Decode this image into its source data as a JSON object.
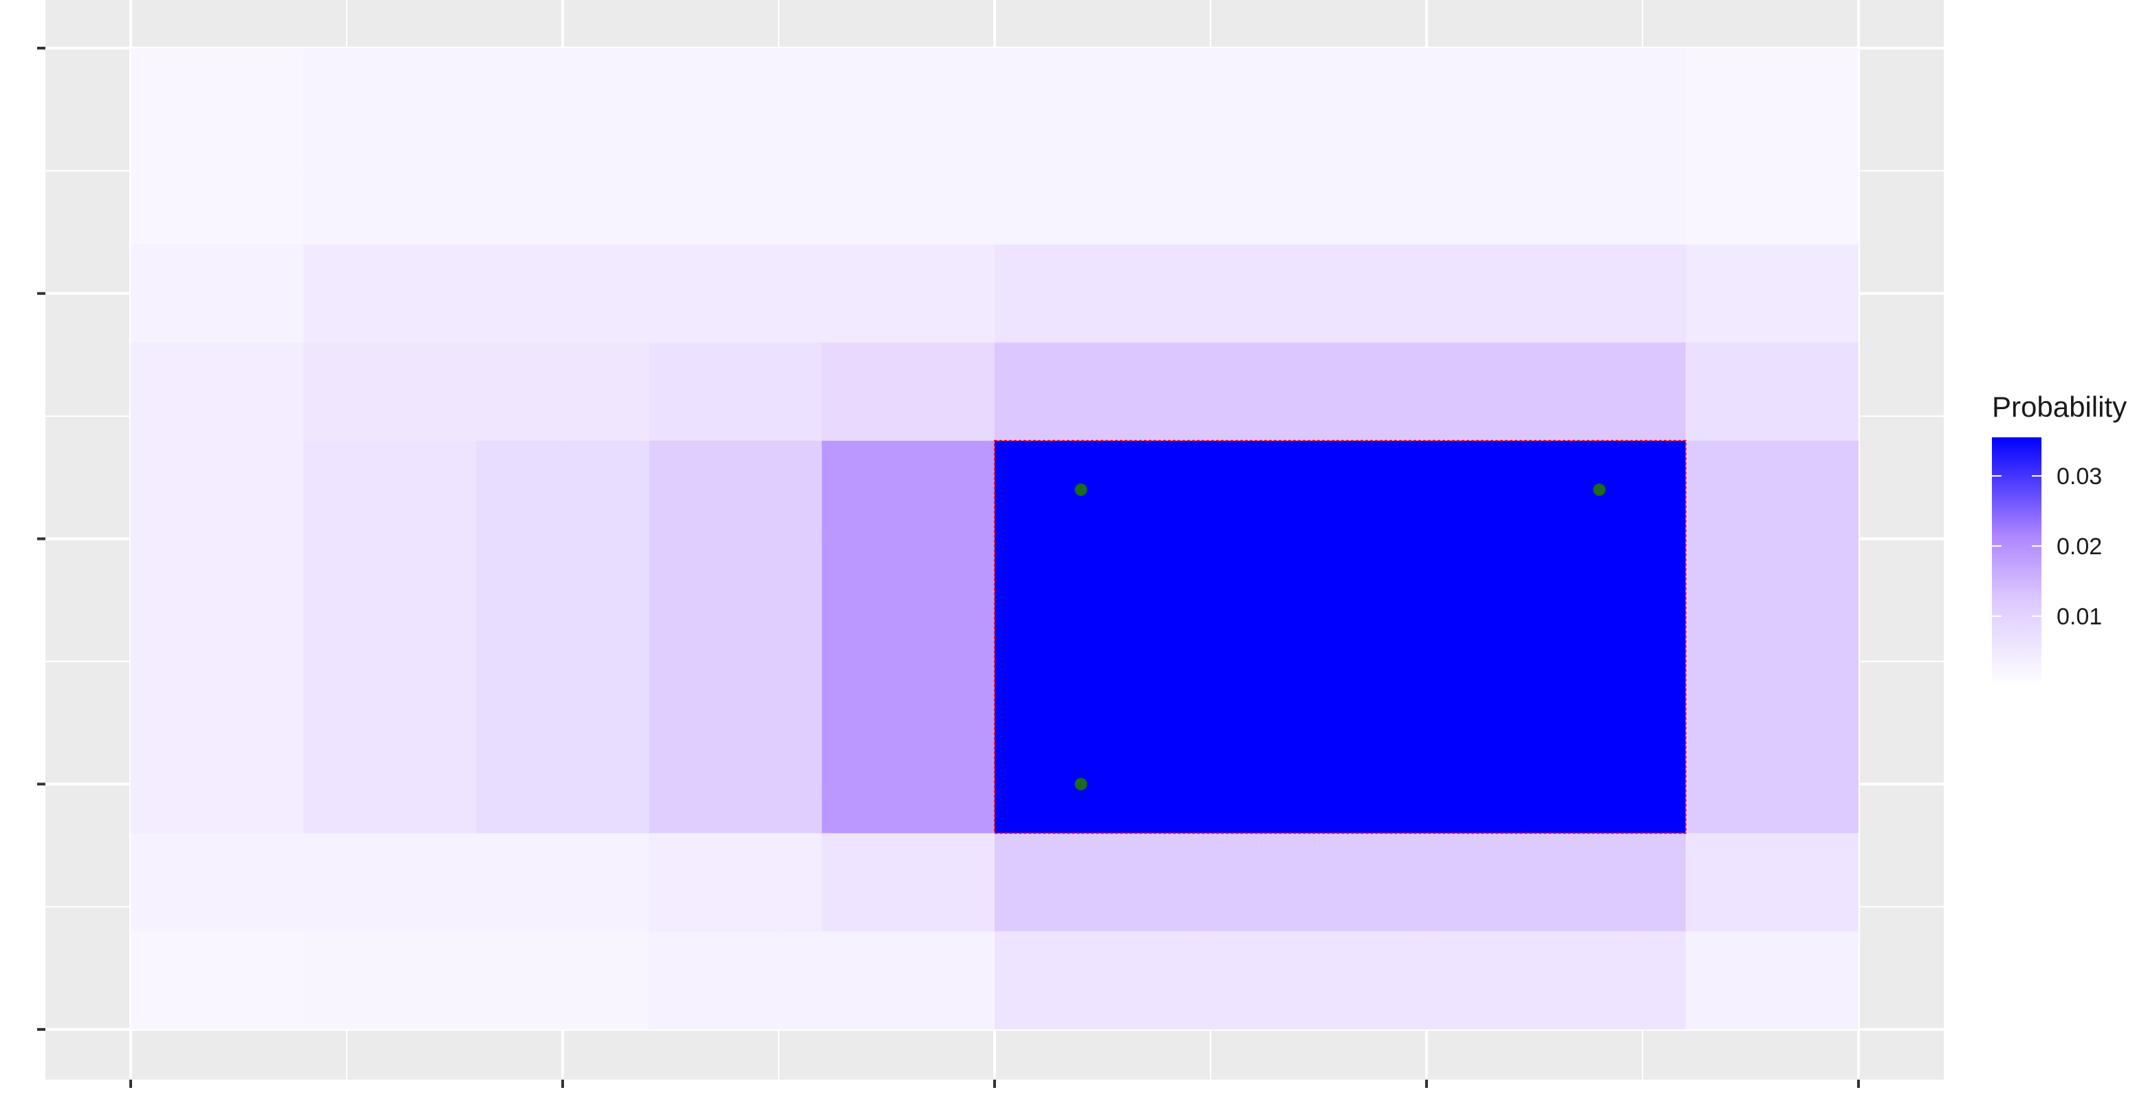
{
  "chart_data": {
    "type": "heatmap",
    "title": "",
    "xlabel": "",
    "ylabel": "",
    "x_ticks": [
      "",
      "",
      "",
      "",
      ""
    ],
    "y_ticks": [
      "",
      "",
      "",
      "",
      ""
    ],
    "grid": true,
    "legend": {
      "title": "Probability",
      "position": "right",
      "low_color": "#ffffff",
      "high_color": "#0000ff",
      "scale_max": 0.0355,
      "breaks": [
        0.01,
        0.02,
        0.03
      ],
      "break_labels": [
        "0.01",
        "0.02",
        "0.03"
      ]
    },
    "x_edges": [
      0,
      1,
      2,
      3,
      4,
      5,
      6,
      7,
      8,
      9,
      10
    ],
    "y_edges": [
      0,
      1,
      2,
      3,
      4,
      5,
      6,
      7,
      8,
      9,
      10
    ],
    "cells": [
      {
        "x": [
          0,
          1
        ],
        "y": [
          0,
          1
        ],
        "value": 0.002
      },
      {
        "x": [
          1,
          3
        ],
        "y": [
          0,
          1
        ],
        "value": 0.0022
      },
      {
        "x": [
          3,
          5
        ],
        "y": [
          0,
          1
        ],
        "value": 0.003
      },
      {
        "x": [
          5,
          9
        ],
        "y": [
          0,
          1
        ],
        "value": 0.006
      },
      {
        "x": [
          9,
          10
        ],
        "y": [
          0,
          1
        ],
        "value": 0.0032
      },
      {
        "x": [
          0,
          3
        ],
        "y": [
          1,
          2
        ],
        "value": 0.003
      },
      {
        "x": [
          3,
          4
        ],
        "y": [
          1,
          2
        ],
        "value": 0.004
      },
      {
        "x": [
          4,
          5
        ],
        "y": [
          1,
          2
        ],
        "value": 0.006
      },
      {
        "x": [
          5,
          9
        ],
        "y": [
          1,
          2
        ],
        "value": 0.012
      },
      {
        "x": [
          9,
          10
        ],
        "y": [
          1,
          2
        ],
        "value": 0.006
      },
      {
        "x": [
          0,
          1
        ],
        "y": [
          2,
          6
        ],
        "value": 0.004
      },
      {
        "x": [
          1,
          2
        ],
        "y": [
          2,
          6
        ],
        "value": 0.006
      },
      {
        "x": [
          2,
          3
        ],
        "y": [
          2,
          6
        ],
        "value": 0.008
      },
      {
        "x": [
          3,
          4
        ],
        "y": [
          2,
          6
        ],
        "value": 0.011
      },
      {
        "x": [
          4,
          5
        ],
        "y": [
          2,
          6
        ],
        "value": 0.019
      },
      {
        "x": [
          5,
          9
        ],
        "y": [
          2,
          6
        ],
        "value": 0.0355
      },
      {
        "x": [
          9,
          10
        ],
        "y": [
          2,
          6
        ],
        "value": 0.012
      },
      {
        "x": [
          0,
          1
        ],
        "y": [
          6,
          7
        ],
        "value": 0.004
      },
      {
        "x": [
          1,
          3
        ],
        "y": [
          6,
          7
        ],
        "value": 0.0055
      },
      {
        "x": [
          3,
          4
        ],
        "y": [
          6,
          7
        ],
        "value": 0.0068
      },
      {
        "x": [
          4,
          5
        ],
        "y": [
          6,
          7
        ],
        "value": 0.0085
      },
      {
        "x": [
          5,
          9
        ],
        "y": [
          6,
          7
        ],
        "value": 0.0125
      },
      {
        "x": [
          9,
          10
        ],
        "y": [
          6,
          7
        ],
        "value": 0.007
      },
      {
        "x": [
          0,
          1
        ],
        "y": [
          7,
          8
        ],
        "value": 0.003
      },
      {
        "x": [
          1,
          5
        ],
        "y": [
          7,
          8
        ],
        "value": 0.0045
      },
      {
        "x": [
          5,
          9
        ],
        "y": [
          7,
          8
        ],
        "value": 0.006
      },
      {
        "x": [
          9,
          10
        ],
        "y": [
          7,
          8
        ],
        "value": 0.0045
      },
      {
        "x": [
          0,
          1
        ],
        "y": [
          8,
          10
        ],
        "value": 0.002
      },
      {
        "x": [
          1,
          9
        ],
        "y": [
          8,
          10
        ],
        "value": 0.0025
      },
      {
        "x": [
          9,
          10
        ],
        "y": [
          8,
          10
        ],
        "value": 0.002
      }
    ],
    "highlight_region": {
      "x": [
        5,
        9
      ],
      "y": [
        2,
        6
      ],
      "color": "#ff0000"
    },
    "points": [
      {
        "x": 5.5,
        "y": 5.5
      },
      {
        "x": 8.5,
        "y": 5.5
      },
      {
        "x": 5.5,
        "y": 2.5
      }
    ],
    "point_color": "#1a6b1a",
    "panel_color": "#ebebeb",
    "grid_color": "#ffffff"
  }
}
